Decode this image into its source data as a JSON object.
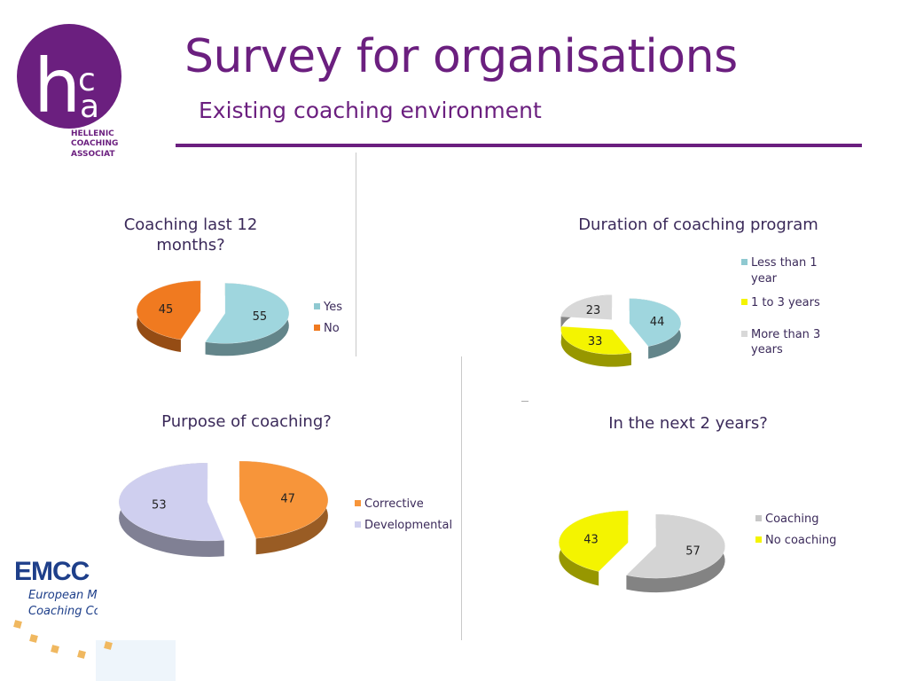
{
  "header": {
    "title": "Survey for organisations",
    "subtitle": "Existing coaching environment"
  },
  "logo": {
    "name": "hca",
    "text_lines": [
      "HELLENIC",
      "COACHING",
      "ASSOCIAT"
    ],
    "color": "#6b1f7f"
  },
  "footer_logo": {
    "word": "EMCC",
    "line1": "European Me",
    "line2": "Coaching Co"
  },
  "chart_data": [
    {
      "type": "pie",
      "title": "Coaching last 12 months?",
      "categories": [
        "Yes",
        "No"
      ],
      "values": [
        55,
        45
      ],
      "colors": [
        "#9fd6de",
        "#f07a20"
      ],
      "legend": "right"
    },
    {
      "type": "pie",
      "title": "Duration of coaching program",
      "categories": [
        "Less than 1 year",
        "1 to 3 years",
        "More than 3 years"
      ],
      "values": [
        44,
        33,
        23
      ],
      "colors": [
        "#9fd6de",
        "#f4f400",
        "#d8d8d8"
      ],
      "legend": "top-right"
    },
    {
      "type": "pie",
      "title": "Purpose of coaching?",
      "categories": [
        "Corrective",
        "Developmental"
      ],
      "values": [
        47,
        53
      ],
      "colors": [
        "#f7953a",
        "#cfcfef"
      ],
      "legend": "right"
    },
    {
      "type": "pie",
      "title": "In the next 2 years?",
      "categories": [
        "Coaching",
        "No coaching"
      ],
      "values": [
        57,
        43
      ],
      "colors": [
        "#d4d4d4",
        "#f4f400"
      ],
      "legend": "right"
    }
  ]
}
